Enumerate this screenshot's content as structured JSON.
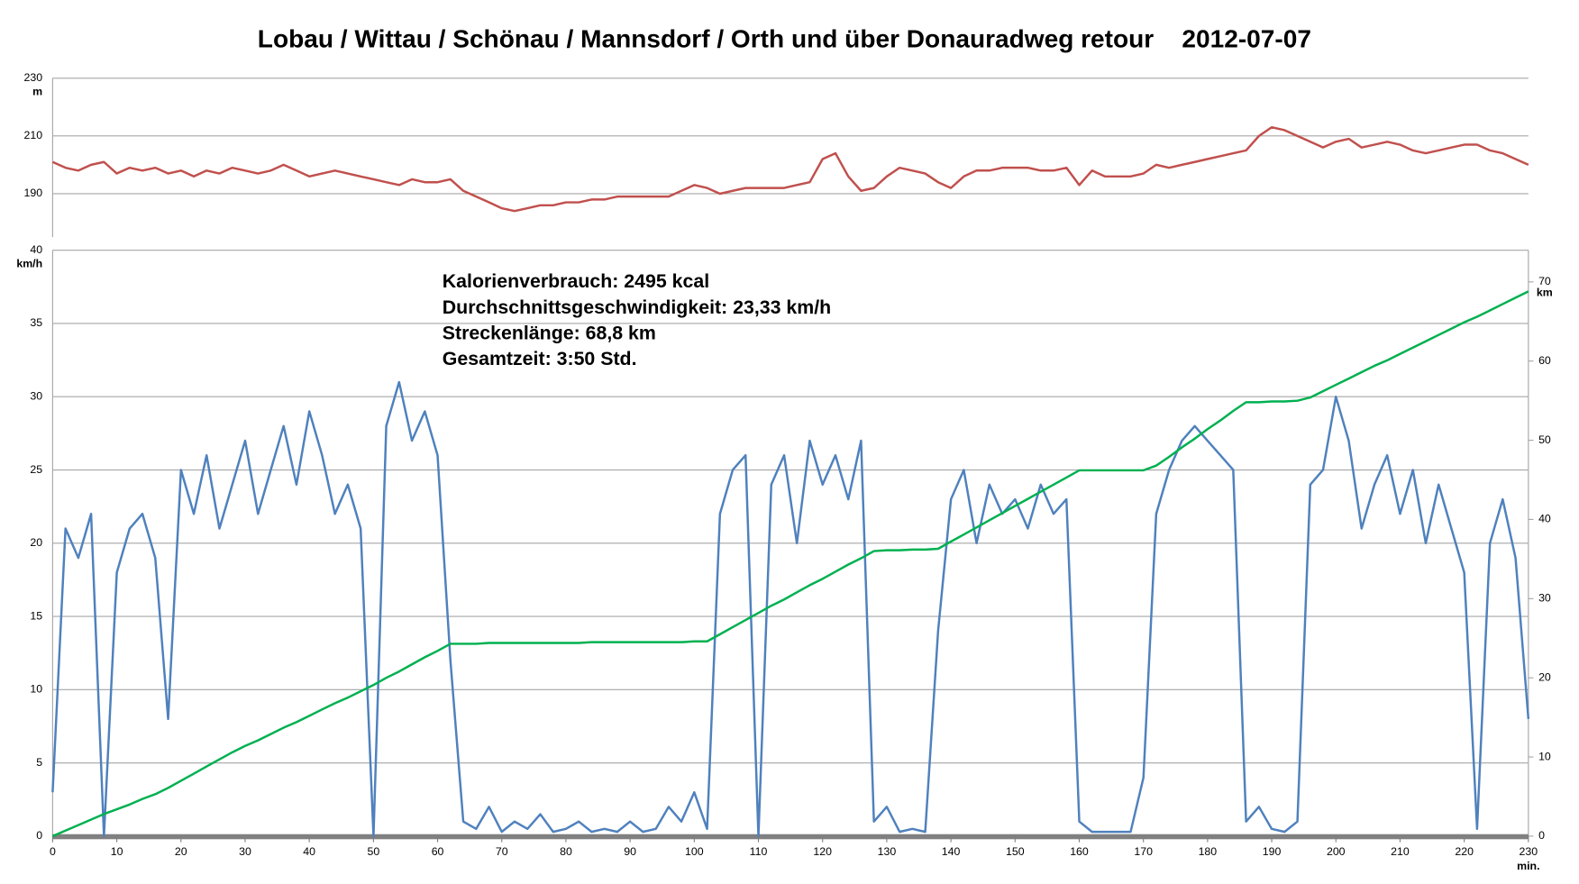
{
  "chart_data": [
    {
      "type": "line",
      "title": "Lobau / Wittau / Schönau / Mannsdorf / Orth und über Donauradweg retour    2012-07-07",
      "y_label": "m",
      "xlim": [
        0,
        230
      ],
      "ylim": [
        175,
        230
      ],
      "yticks": [
        190,
        210,
        230
      ],
      "grid": true,
      "x": [
        0,
        2,
        4,
        6,
        8,
        10,
        12,
        14,
        16,
        18,
        20,
        22,
        24,
        26,
        28,
        30,
        32,
        34,
        36,
        38,
        40,
        42,
        44,
        46,
        48,
        50,
        52,
        54,
        56,
        58,
        60,
        62,
        64,
        66,
        68,
        70,
        72,
        74,
        76,
        78,
        80,
        82,
        84,
        86,
        88,
        90,
        92,
        94,
        96,
        98,
        100,
        102,
        104,
        106,
        108,
        110,
        112,
        114,
        116,
        118,
        120,
        122,
        124,
        126,
        128,
        130,
        132,
        134,
        136,
        138,
        140,
        142,
        144,
        146,
        148,
        150,
        152,
        154,
        156,
        158,
        160,
        162,
        164,
        166,
        168,
        170,
        172,
        174,
        176,
        178,
        180,
        182,
        184,
        186,
        188,
        190,
        192,
        194,
        196,
        198,
        200,
        202,
        204,
        206,
        208,
        210,
        212,
        214,
        216,
        218,
        220,
        222,
        224,
        226,
        228,
        230
      ],
      "series": [
        {
          "color": "#c0504d",
          "values": [
            201,
            199,
            198,
            200,
            201,
            197,
            199,
            198,
            199,
            197,
            198,
            196,
            198,
            197,
            199,
            198,
            197,
            198,
            200,
            198,
            196,
            197,
            198,
            197,
            196,
            195,
            194,
            193,
            195,
            194,
            194,
            195,
            191,
            189,
            187,
            185,
            184,
            185,
            186,
            186,
            187,
            187,
            188,
            188,
            189,
            189,
            189,
            189,
            189,
            191,
            193,
            192,
            190,
            191,
            192,
            192,
            192,
            192,
            193,
            194,
            202,
            204,
            196,
            191,
            192,
            196,
            199,
            198,
            197,
            194,
            192,
            196,
            198,
            198,
            199,
            199,
            199,
            198,
            198,
            199,
            193,
            198,
            196,
            196,
            196,
            197,
            200,
            199,
            200,
            201,
            202,
            203,
            204,
            205,
            210,
            213,
            212,
            210,
            208,
            206,
            208,
            209,
            206,
            207,
            208,
            207,
            205,
            204,
            205,
            206,
            207,
            207,
            205,
            204,
            202,
            200
          ]
        }
      ]
    },
    {
      "type": "line",
      "y_label": "km/h",
      "y2_label": "km",
      "x_label": "min.",
      "annotations": [
        "Kalorienverbrauch: 2495 kcal",
        "Durchschnittsgeschwindigkeit: 23,33 km/h",
        "Streckenlänge: 68,8 km",
        "Gesamtzeit: 3:50 Std."
      ],
      "xlim": [
        0,
        230
      ],
      "xticks": [
        0,
        10,
        20,
        30,
        40,
        50,
        60,
        70,
        80,
        90,
        100,
        110,
        120,
        130,
        140,
        150,
        160,
        170,
        180,
        190,
        200,
        210,
        220,
        230
      ],
      "ylim": [
        0,
        40
      ],
      "yticks": [
        0,
        5,
        10,
        15,
        20,
        25,
        30,
        35,
        40
      ],
      "y2lim": [
        0,
        74
      ],
      "y2ticks": [
        0,
        10,
        20,
        30,
        40,
        50,
        60,
        70
      ],
      "grid": true,
      "x": [
        0,
        2,
        4,
        6,
        8,
        10,
        12,
        14,
        16,
        18,
        20,
        22,
        24,
        26,
        28,
        30,
        32,
        34,
        36,
        38,
        40,
        42,
        44,
        46,
        48,
        50,
        52,
        54,
        56,
        58,
        60,
        62,
        64,
        66,
        68,
        70,
        72,
        74,
        76,
        78,
        80,
        82,
        84,
        86,
        88,
        90,
        92,
        94,
        96,
        98,
        100,
        102,
        104,
        106,
        108,
        110,
        112,
        114,
        116,
        118,
        120,
        122,
        124,
        126,
        128,
        130,
        132,
        134,
        136,
        138,
        140,
        142,
        144,
        146,
        148,
        150,
        152,
        154,
        156,
        158,
        160,
        162,
        164,
        166,
        168,
        170,
        172,
        174,
        176,
        178,
        180,
        182,
        184,
        186,
        188,
        190,
        192,
        194,
        196,
        198,
        200,
        202,
        204,
        206,
        208,
        210,
        212,
        214,
        216,
        218,
        220,
        222,
        224,
        226,
        228,
        230
      ],
      "series": [
        {
          "color": "#4f81bd",
          "values": [
            3,
            21,
            19,
            22,
            0,
            18,
            21,
            22,
            19,
            8,
            25,
            22,
            26,
            21,
            24,
            27,
            22,
            25,
            28,
            24,
            29,
            26,
            22,
            24,
            21,
            0,
            28,
            31,
            27,
            29,
            26,
            12,
            1,
            0.5,
            2,
            0.3,
            1,
            0.5,
            1.5,
            0.3,
            0.5,
            1,
            0.3,
            0.5,
            0.3,
            1,
            0.3,
            0.5,
            2,
            1,
            3,
            0.5,
            22,
            25,
            26,
            0,
            24,
            26,
            20,
            27,
            24,
            26,
            23,
            27,
            1,
            2,
            0.3,
            0.5,
            0.3,
            14,
            23,
            25,
            20,
            24,
            22,
            23,
            21,
            24,
            22,
            23,
            1,
            0.3,
            0.3,
            0.3,
            0.3,
            4,
            22,
            25,
            27,
            28,
            27,
            26,
            25,
            1,
            2,
            0.5,
            0.3,
            1,
            24,
            25,
            30,
            27,
            21,
            24,
            26,
            22,
            25,
            20,
            24,
            21,
            18,
            0.5,
            20,
            23,
            19,
            8
          ]
        },
        {
          "color": "#00b050",
          "axis": "y2",
          "values": [
            0,
            0.7,
            1.4,
            2.1,
            2.8,
            3.4,
            4.0,
            4.7,
            5.3,
            6.1,
            7.0,
            7.9,
            8.8,
            9.7,
            10.6,
            11.4,
            12.1,
            12.9,
            13.7,
            14.4,
            15.2,
            16.0,
            16.8,
            17.5,
            18.3,
            19.1,
            20.0,
            20.8,
            21.7,
            22.6,
            23.4,
            24.3,
            24.3,
            24.3,
            24.4,
            24.4,
            24.4,
            24.4,
            24.4,
            24.4,
            24.4,
            24.4,
            24.5,
            24.5,
            24.5,
            24.5,
            24.5,
            24.5,
            24.5,
            24.5,
            24.6,
            24.6,
            25.5,
            26.4,
            27.3,
            28.2,
            29.1,
            29.9,
            30.8,
            31.7,
            32.5,
            33.4,
            34.3,
            35.1,
            36.0,
            36.1,
            36.1,
            36.2,
            36.2,
            36.3,
            37.2,
            38.1,
            39.0,
            39.9,
            40.8,
            41.7,
            42.6,
            43.5,
            44.4,
            45.3,
            46.2,
            46.2,
            46.2,
            46.2,
            46.2,
            46.2,
            46.8,
            47.9,
            49.1,
            50.2,
            51.4,
            52.5,
            53.7,
            54.8,
            54.8,
            54.9,
            54.9,
            55.0,
            55.4,
            56.2,
            57.0,
            57.8,
            58.6,
            59.4,
            60.1,
            60.9,
            61.7,
            62.5,
            63.3,
            64.1,
            64.9,
            65.6,
            66.4,
            67.2,
            68.0,
            68.8
          ]
        }
      ]
    }
  ]
}
